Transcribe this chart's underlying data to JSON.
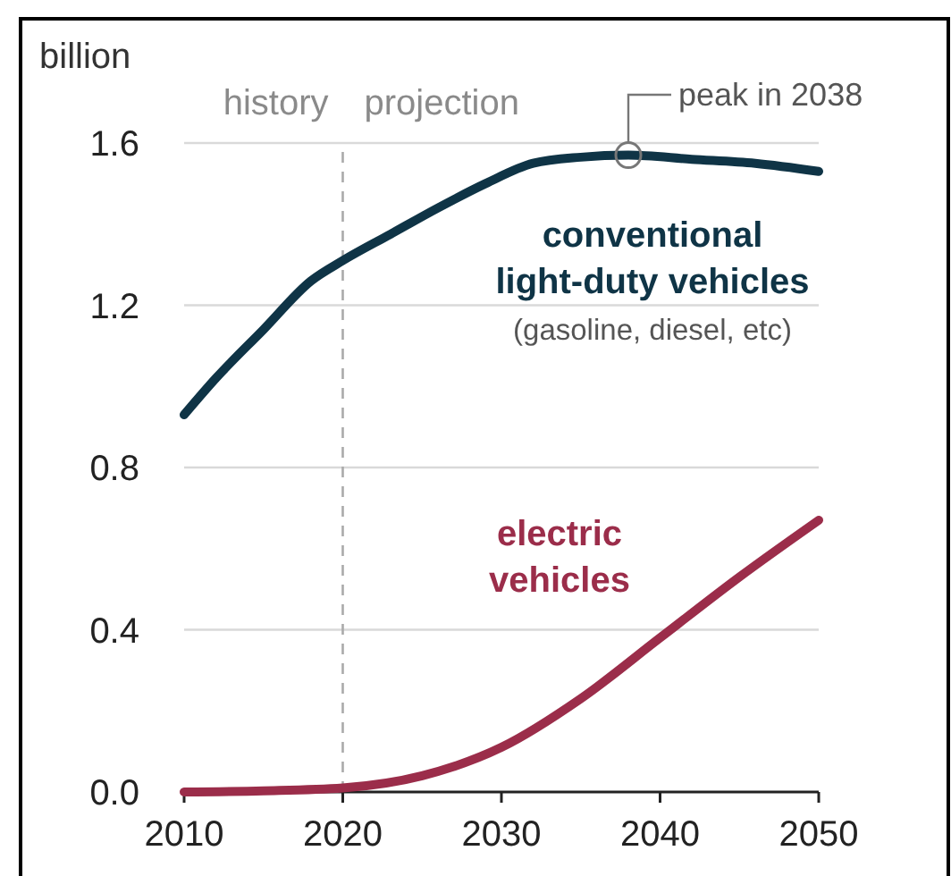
{
  "chart_data": {
    "type": "line",
    "ylabel": "billion",
    "x": [
      2010,
      2012,
      2015,
      2018,
      2020,
      2023,
      2026,
      2029,
      2032,
      2035,
      2038,
      2042,
      2046,
      2050
    ],
    "series": [
      {
        "name": "conventional light-duty vehicles",
        "color": "#0f3446",
        "values": [
          0.93,
          1.02,
          1.14,
          1.26,
          1.31,
          1.375,
          1.44,
          1.5,
          1.55,
          1.565,
          1.57,
          1.56,
          1.55,
          1.53
        ]
      },
      {
        "name": "electric vehicles",
        "color": "#9b2d4a",
        "x": [
          2010,
          2015,
          2020,
          2025,
          2030,
          2035,
          2040,
          2045,
          2050
        ],
        "values": [
          0,
          0.003,
          0.01,
          0.04,
          0.11,
          0.23,
          0.38,
          0.53,
          0.67
        ]
      }
    ],
    "xlim": [
      2010,
      2050
    ],
    "xticks": [
      2010,
      2020,
      2030,
      2040,
      2050
    ],
    "ylim": [
      0,
      1.6
    ],
    "yticks": [
      {
        "value": 0,
        "label": "0.0"
      },
      {
        "value": 0.4,
        "label": "0.4"
      },
      {
        "value": 0.8,
        "label": "0.8"
      },
      {
        "value": 1.2,
        "label": "1.2"
      },
      {
        "value": 1.6,
        "label": "1.6"
      }
    ],
    "grid": "y",
    "marker": "none",
    "line_style": "solid",
    "ref_lines": [
      {
        "axis": "x",
        "value": 2020,
        "label": null,
        "color": "#aaaaaa",
        "line_style": "dashed"
      }
    ],
    "annotations": [
      "history",
      "projection",
      {
        "text": "peak in 2038",
        "x": 2038,
        "y": 1.57
      },
      "(gasoline, diesel, etc)"
    ]
  }
}
